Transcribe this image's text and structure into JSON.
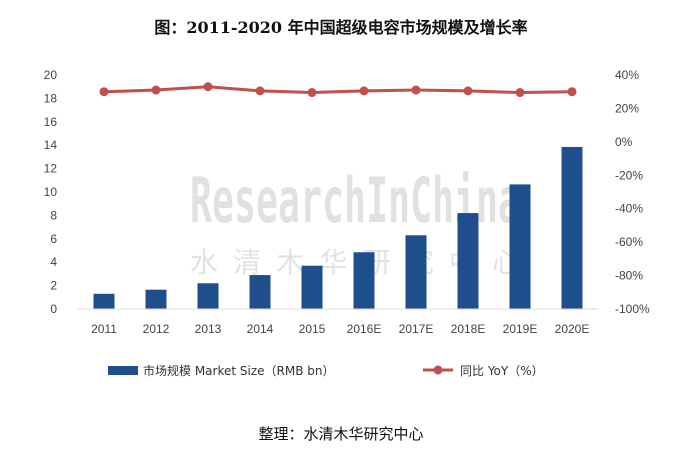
{
  "title": "图：2011-2020 年中国超级电容市场规模及增长率",
  "source": "整理：水清木华研究中心",
  "watermark": {
    "en": "ResearchInChina",
    "cn": "水清木华研究中心"
  },
  "colors": {
    "bar": "#1f4e8c",
    "line": "#c0504d",
    "axis": "#d9d9d9"
  },
  "chart_data": {
    "type": "bar",
    "categories": [
      "2011",
      "2012",
      "2013",
      "2014",
      "2015",
      "2016E",
      "2017E",
      "2018E",
      "2019E",
      "2020E"
    ],
    "series": [
      {
        "name": "市场规模 Market Size（RMB bn）",
        "type": "bar",
        "axis": "left",
        "values": [
          1.3,
          1.65,
          2.2,
          2.9,
          3.7,
          4.85,
          6.3,
          8.2,
          10.65,
          13.85
        ]
      },
      {
        "name": "同比 YoY（%）",
        "type": "line",
        "axis": "right",
        "values": [
          30,
          31,
          33,
          30.5,
          29.5,
          30.5,
          31,
          30.5,
          29.5,
          30
        ]
      }
    ],
    "y_left": {
      "min": 0,
      "max": 20,
      "step": 2,
      "ticks": [
        "0",
        "2",
        "4",
        "6",
        "8",
        "10",
        "12",
        "14",
        "16",
        "18",
        "20"
      ]
    },
    "y_right": {
      "min": -100,
      "max": 40,
      "step": 20,
      "ticks": [
        "-100%",
        "-80%",
        "-60%",
        "-40%",
        "-20%",
        "0%",
        "20%",
        "40%"
      ]
    },
    "legend_placement": "bottom",
    "grid": false
  }
}
